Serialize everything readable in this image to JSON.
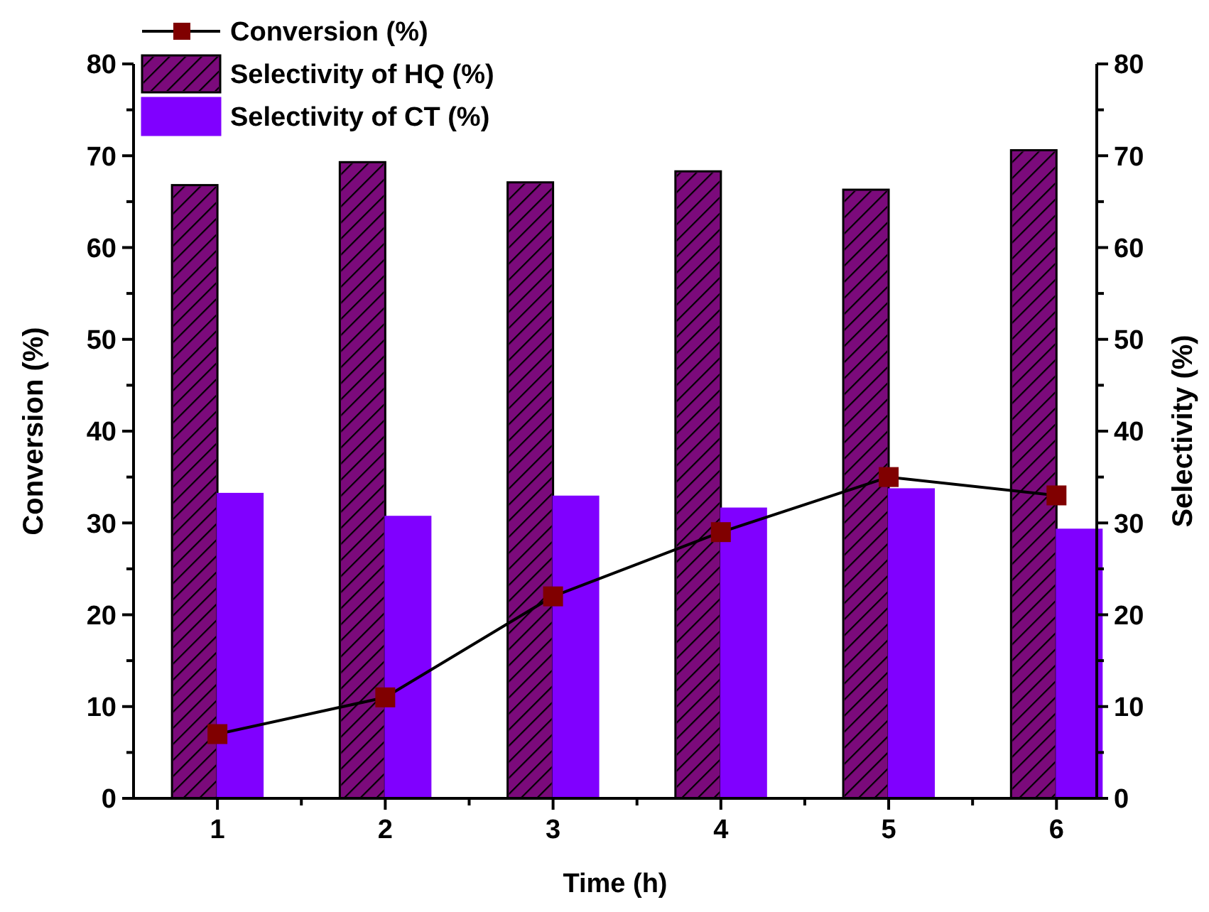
{
  "chart_data": {
    "type": "bar",
    "categories": [
      "1",
      "2",
      "3",
      "4",
      "5",
      "6"
    ],
    "xlabel": "Time (h)",
    "ylabel": "Conversion (%)",
    "y2label": "Selectivity (%)",
    "ylim": [
      0,
      80
    ],
    "yticks": [
      0,
      10,
      20,
      30,
      40,
      50,
      60,
      70,
      80
    ],
    "y2lim": [
      0,
      80
    ],
    "y2ticks": [
      0,
      10,
      20,
      30,
      40,
      50,
      60,
      70,
      80
    ],
    "legend": "top left",
    "grid": false,
    "series": [
      {
        "name": "Conversion (%)",
        "type": "line",
        "color": "#800000",
        "marker": "square",
        "line_style": "solid",
        "values": [
          7,
          11,
          22,
          29,
          35,
          33
        ]
      },
      {
        "name": "Selectivity of HQ (%)",
        "axis": "y2",
        "color": "#7b0a7b",
        "values": [
          66.8,
          69.3,
          67.1,
          68.3,
          66.3,
          70.6
        ]
      },
      {
        "name": "Selectivity of CT (%)",
        "axis": "y2",
        "color": "#8000ff",
        "values": [
          33.2,
          30.7,
          32.9,
          31.6,
          33.7,
          29.3
        ]
      }
    ]
  }
}
